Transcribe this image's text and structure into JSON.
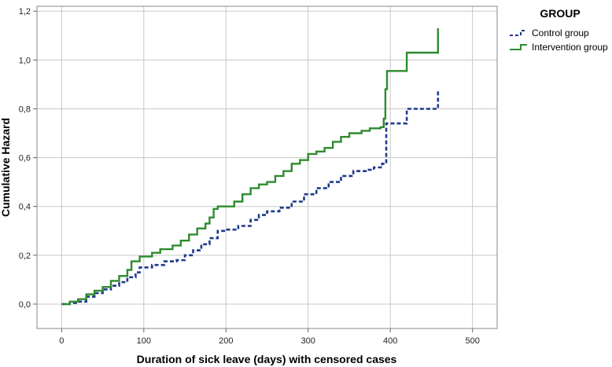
{
  "chart_data": {
    "type": "line",
    "step": true,
    "title": "",
    "xlabel": "Duration of sick leave (days) with censored cases",
    "ylabel": "Cumulative Hazard",
    "xlim": [
      -30,
      530
    ],
    "ylim": [
      -0.1,
      1.22
    ],
    "x_ticks": [
      0,
      100,
      200,
      300,
      400,
      500
    ],
    "x_tick_labels": [
      "0",
      "100",
      "200",
      "300",
      "400",
      "500"
    ],
    "y_ticks": [
      0.0,
      0.2,
      0.4,
      0.6,
      0.8,
      1.0,
      1.2
    ],
    "y_tick_labels": [
      "0,0",
      "0,2",
      "0,4",
      "0,6",
      "0,8",
      "1,0",
      "1,2"
    ],
    "grid": true,
    "legend": {
      "title": "GROUP",
      "placement": "top-right outside"
    },
    "series": [
      {
        "name": "Control group",
        "color": "#1f3a8a",
        "style": "dashed",
        "points": [
          [
            0,
            0.0
          ],
          [
            10,
            0.005
          ],
          [
            20,
            0.01
          ],
          [
            30,
            0.03
          ],
          [
            40,
            0.045
          ],
          [
            50,
            0.06
          ],
          [
            60,
            0.075
          ],
          [
            70,
            0.09
          ],
          [
            80,
            0.11
          ],
          [
            90,
            0.13
          ],
          [
            95,
            0.15
          ],
          [
            110,
            0.16
          ],
          [
            125,
            0.175
          ],
          [
            140,
            0.18
          ],
          [
            150,
            0.2
          ],
          [
            160,
            0.22
          ],
          [
            170,
            0.245
          ],
          [
            180,
            0.27
          ],
          [
            190,
            0.3
          ],
          [
            200,
            0.305
          ],
          [
            215,
            0.32
          ],
          [
            230,
            0.345
          ],
          [
            240,
            0.365
          ],
          [
            250,
            0.38
          ],
          [
            265,
            0.395
          ],
          [
            280,
            0.42
          ],
          [
            295,
            0.45
          ],
          [
            310,
            0.475
          ],
          [
            325,
            0.5
          ],
          [
            340,
            0.525
          ],
          [
            355,
            0.545
          ],
          [
            370,
            0.55
          ],
          [
            380,
            0.56
          ],
          [
            390,
            0.575
          ],
          [
            395,
            0.74
          ],
          [
            410,
            0.74
          ],
          [
            420,
            0.8
          ],
          [
            450,
            0.8
          ],
          [
            458,
            0.8
          ],
          [
            458,
            0.88
          ]
        ]
      },
      {
        "name": "Intervention group",
        "color": "#2e8b2e",
        "style": "solid",
        "points": [
          [
            0,
            0.0
          ],
          [
            10,
            0.01
          ],
          [
            20,
            0.02
          ],
          [
            30,
            0.04
          ],
          [
            40,
            0.055
          ],
          [
            50,
            0.07
          ],
          [
            60,
            0.095
          ],
          [
            70,
            0.115
          ],
          [
            80,
            0.14
          ],
          [
            85,
            0.175
          ],
          [
            95,
            0.195
          ],
          [
            110,
            0.21
          ],
          [
            120,
            0.225
          ],
          [
            135,
            0.24
          ],
          [
            145,
            0.26
          ],
          [
            155,
            0.285
          ],
          [
            165,
            0.31
          ],
          [
            175,
            0.33
          ],
          [
            180,
            0.355
          ],
          [
            185,
            0.39
          ],
          [
            190,
            0.4
          ],
          [
            200,
            0.4
          ],
          [
            210,
            0.42
          ],
          [
            220,
            0.45
          ],
          [
            230,
            0.475
          ],
          [
            240,
            0.49
          ],
          [
            250,
            0.5
          ],
          [
            260,
            0.525
          ],
          [
            270,
            0.545
          ],
          [
            280,
            0.575
          ],
          [
            290,
            0.59
          ],
          [
            300,
            0.615
          ],
          [
            310,
            0.625
          ],
          [
            320,
            0.64
          ],
          [
            330,
            0.665
          ],
          [
            340,
            0.685
          ],
          [
            350,
            0.7
          ],
          [
            365,
            0.71
          ],
          [
            375,
            0.72
          ],
          [
            388,
            0.725
          ],
          [
            392,
            0.76
          ],
          [
            394,
            0.88
          ],
          [
            396,
            0.955
          ],
          [
            400,
            0.955
          ],
          [
            420,
            0.955
          ],
          [
            420,
            1.03
          ],
          [
            440,
            1.03
          ],
          [
            458,
            1.03
          ],
          [
            458,
            1.13
          ]
        ]
      }
    ]
  }
}
